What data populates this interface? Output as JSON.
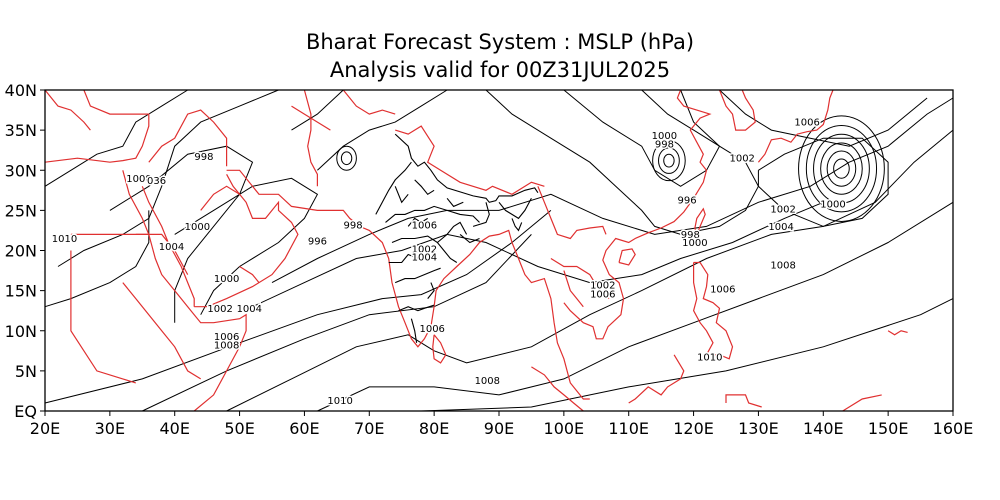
{
  "title_line1": "Bharat Forecast System : MSLP (hPa)",
  "title_line2": "Analysis valid for 00Z31JUL2025",
  "x_ticks": [
    "20E",
    "30E",
    "40E",
    "50E",
    "60E",
    "70E",
    "80E",
    "90E",
    "100E",
    "110E",
    "120E",
    "130E",
    "140E",
    "150E",
    "160E"
  ],
  "y_ticks": [
    "40N",
    "35N",
    "30N",
    "25N",
    "20N",
    "15N",
    "10N",
    "5N",
    "EQ"
  ],
  "contour_labels": [
    {
      "text": "998",
      "lon": 44.5,
      "lat": 31.7
    },
    {
      "text": "1008",
      "lon": 34.5,
      "lat": 29.0
    },
    {
      "text": "036",
      "lon": 37.2,
      "lat": 28.7
    },
    {
      "text": "1010",
      "lon": 23.0,
      "lat": 21.5
    },
    {
      "text": "1004",
      "lon": 39.5,
      "lat": 20.5
    },
    {
      "text": "1000",
      "lon": 43.5,
      "lat": 23.0
    },
    {
      "text": "996",
      "lon": 62.0,
      "lat": 21.2
    },
    {
      "text": "998",
      "lon": 67.5,
      "lat": 23.2
    },
    {
      "text": "1000",
      "lon": 48.0,
      "lat": 16.5
    },
    {
      "text": "1002",
      "lon": 47.0,
      "lat": 12.8
    },
    {
      "text": "1004",
      "lon": 51.5,
      "lat": 12.8
    },
    {
      "text": "1006",
      "lon": 48.0,
      "lat": 9.3
    },
    {
      "text": "1008",
      "lon": 48.0,
      "lat": 8.2
    },
    {
      "text": "1006",
      "lon": 78.5,
      "lat": 23.2
    },
    {
      "text": "1002",
      "lon": 78.5,
      "lat": 20.2
    },
    {
      "text": "1004",
      "lon": 78.5,
      "lat": 19.2
    },
    {
      "text": "1006",
      "lon": 79.7,
      "lat": 10.3
    },
    {
      "text": "1008",
      "lon": 88.2,
      "lat": 3.8
    },
    {
      "text": "1010",
      "lon": 65.5,
      "lat": 1.3
    },
    {
      "text": "1000",
      "lon": 115.5,
      "lat": 34.3
    },
    {
      "text": "998",
      "lon": 115.5,
      "lat": 33.3
    },
    {
      "text": "996",
      "lon": 119.0,
      "lat": 26.3
    },
    {
      "text": "1002",
      "lon": 127.5,
      "lat": 31.5
    },
    {
      "text": "1006",
      "lon": 137.5,
      "lat": 36.0
    },
    {
      "text": "1000",
      "lon": 141.5,
      "lat": 25.8
    },
    {
      "text": "1002",
      "lon": 133.8,
      "lat": 25.2
    },
    {
      "text": "1004",
      "lon": 133.5,
      "lat": 23.0
    },
    {
      "text": "998",
      "lon": 119.5,
      "lat": 22.0
    },
    {
      "text": "1000",
      "lon": 120.2,
      "lat": 21.0
    },
    {
      "text": "1008",
      "lon": 133.8,
      "lat": 18.2
    },
    {
      "text": "1002",
      "lon": 106.0,
      "lat": 15.7
    },
    {
      "text": "1006",
      "lon": 106.0,
      "lat": 14.6
    },
    {
      "text": "1006",
      "lon": 124.5,
      "lat": 15.2
    },
    {
      "text": "1010",
      "lon": 122.5,
      "lat": 6.7
    }
  ]
}
